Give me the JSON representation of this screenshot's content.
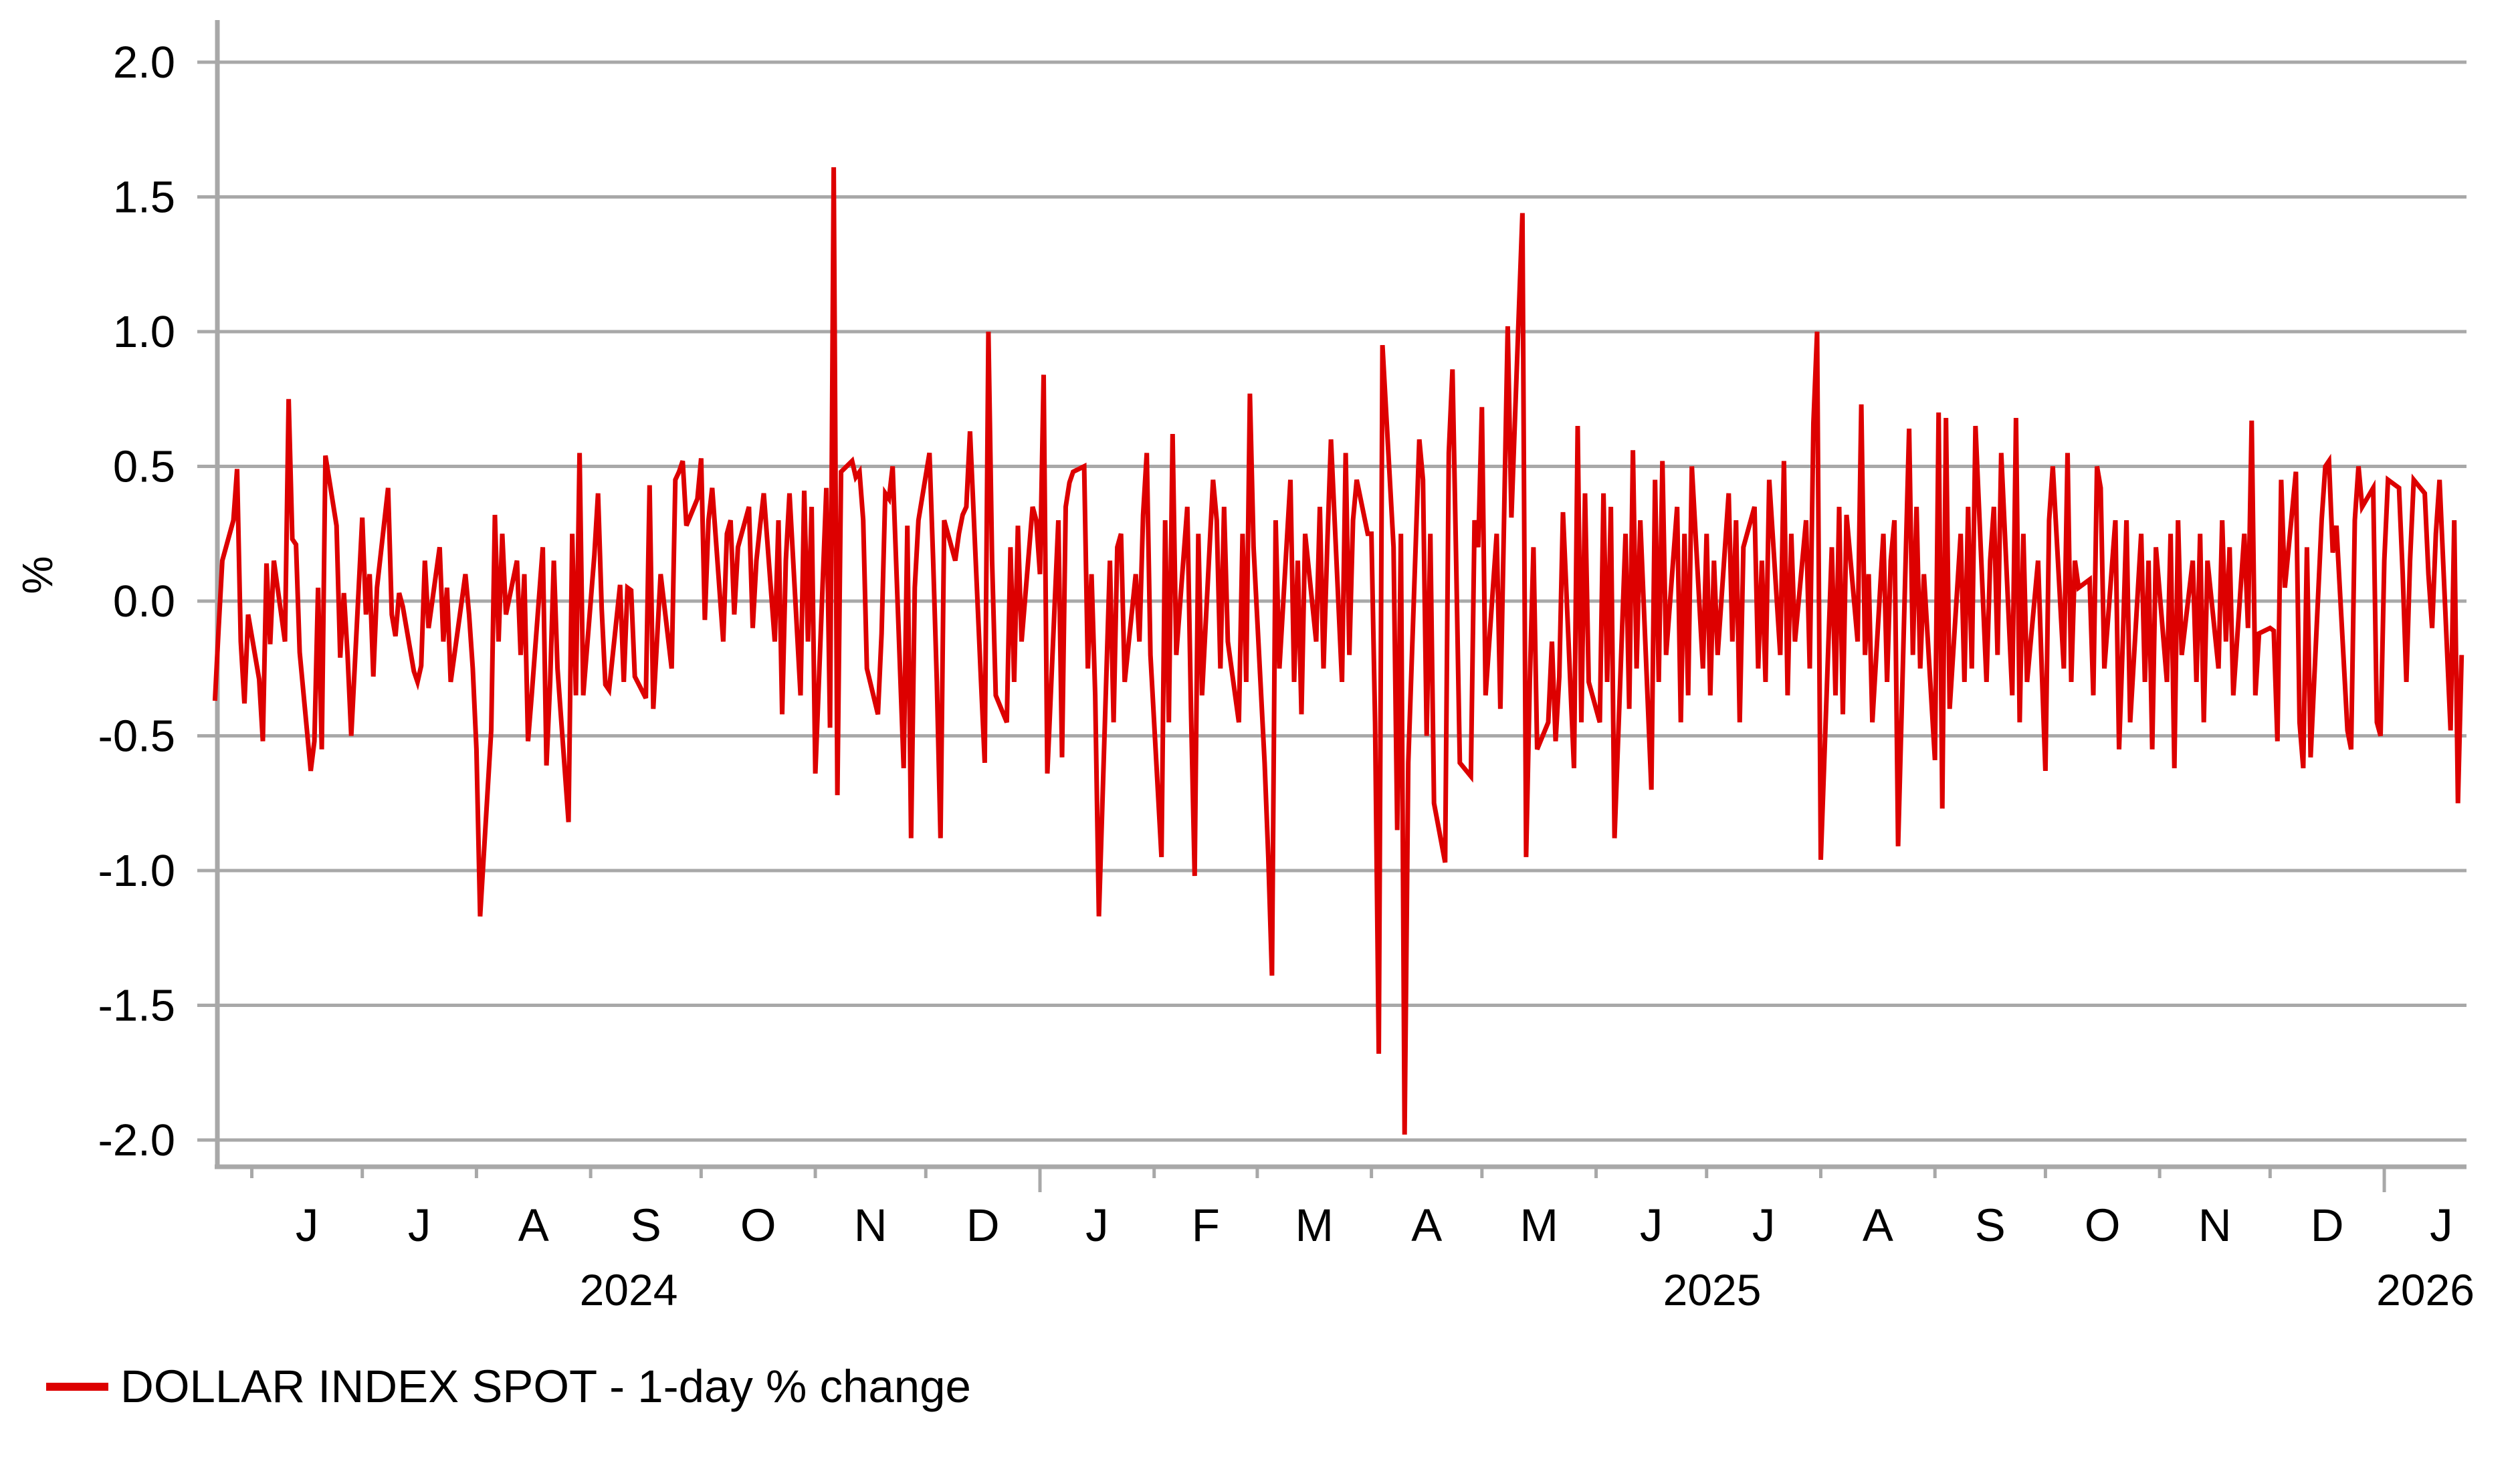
{
  "chart": {
    "ylabel": "%",
    "y_axis_tick_labels": [
      "2.0",
      "1.5",
      "1.0",
      "0.5",
      "0.0",
      "-0.5",
      "-1.0",
      "-1.5",
      "-2.0"
    ],
    "x_axis": {
      "month_labels": [
        "J",
        "J",
        "A",
        "S",
        "O",
        "N",
        "D",
        "J",
        "F",
        "M",
        "A",
        "M",
        "J",
        "J",
        "A",
        "S",
        "O",
        "N",
        "D",
        "J"
      ],
      "year_labels": [
        "2024",
        "2025",
        "2026"
      ]
    },
    "legend": {
      "label": "DOLLAR INDEX SPOT - 1-day % change"
    },
    "colors": {
      "line": "#dd0000",
      "axis": "#a8a8a8",
      "text": "#000000"
    }
  },
  "chart_data": {
    "type": "line",
    "title": "",
    "xlabel": "",
    "ylabel": "%",
    "ylim": [
      -2.0,
      2.0
    ],
    "y_tick_step": 0.5,
    "grid": "horizontal",
    "legend_position": "bottom-left",
    "x_start": "2024-05-22",
    "x_end": "2026-01-22",
    "frequency": "weekdays",
    "x_month_boundaries_first": "2024-06-01",
    "x_month_boundaries_last": "2026-01-01",
    "series": [
      {
        "name": "DOLLAR INDEX SPOT - 1-day % change",
        "color": "#dd0000",
        "values": [
          -0.37,
          -0.1,
          0.15,
          0.3,
          0.49,
          -0.15,
          -0.38,
          -0.05,
          -0.29,
          -0.52,
          0.14,
          -0.16,
          0.15,
          -0.15,
          0.75,
          0.23,
          0.21,
          -0.19,
          -0.63,
          -0.52,
          0.05,
          -0.55,
          0.54,
          0.28,
          -0.21,
          0.03,
          -0.2,
          -0.5,
          0.31,
          -0.05,
          0.1,
          -0.28,
          0.05,
          0.42,
          -0.05,
          -0.13,
          0.03,
          -0.02,
          -0.26,
          -0.3,
          -0.24,
          0.15,
          -0.1,
          0.2,
          -0.15,
          0.05,
          -0.3,
          -0.2,
          0.1,
          -0.05,
          -0.25,
          -0.55,
          -1.17,
          -0.48,
          0.32,
          -0.15,
          0.25,
          -0.05,
          0.15,
          -0.2,
          0.1,
          -0.52,
          -0.35,
          0.2,
          -0.61,
          -0.3,
          0.15,
          -0.25,
          -0.82,
          0.25,
          -0.35,
          0.55,
          -0.35,
          0.17,
          0.4,
          -0.03,
          -0.31,
          -0.33,
          0.06,
          -0.3,
          0.05,
          0.04,
          -0.28,
          -0.36,
          0.43,
          -0.4,
          -0.15,
          0.1,
          -0.25,
          0.45,
          0.48,
          0.52,
          0.28,
          0.38,
          0.53,
          -0.07,
          0.3,
          0.42,
          -0.15,
          0.25,
          0.3,
          -0.05,
          0.2,
          0.35,
          -0.1,
          0.15,
          0.28,
          0.4,
          -0.15,
          0.3,
          -0.42,
          0.15,
          0.4,
          -0.35,
          0.41,
          -0.15,
          0.35,
          -0.64,
          0.42,
          -0.47,
          1.61,
          -0.72,
          0.48,
          0.52,
          0.46,
          0.48,
          0.3,
          -0.25,
          -0.42,
          -0.12,
          0.4,
          0.38,
          0.5,
          -0.62,
          0.28,
          -0.88,
          0.05,
          0.3,
          0.55,
          0.15,
          -0.3,
          -0.88,
          0.3,
          0.15,
          0.25,
          0.32,
          0.35,
          0.63,
          -0.3,
          -0.6,
          1.0,
          0.15,
          -0.35,
          -0.45,
          0.2,
          -0.3,
          0.28,
          -0.15,
          0.35,
          0.3,
          0.1,
          0.84,
          -0.64,
          0.3,
          -0.58,
          0.35,
          0.44,
          0.48,
          0.5,
          -0.25,
          0.1,
          -0.35,
          -1.17,
          0.15,
          -0.45,
          0.2,
          0.25,
          -0.3,
          0.1,
          -0.15,
          0.32,
          0.55,
          -0.2,
          -0.95,
          0.3,
          -0.45,
          0.62,
          -0.2,
          0.35,
          -0.4,
          -1.02,
          0.25,
          -0.35,
          0.45,
          0.3,
          -0.25,
          0.35,
          -0.15,
          -0.45,
          0.25,
          -0.3,
          0.77,
          0.2,
          -0.6,
          -0.95,
          -1.39,
          0.3,
          -0.25,
          0.45,
          -0.3,
          0.15,
          -0.42,
          0.25,
          -0.15,
          0.35,
          -0.25,
          0.2,
          0.6,
          -0.3,
          0.55,
          -0.2,
          0.3,
          0.45,
          0.25,
          0.25,
          -0.45,
          -1.68,
          0.95,
          0.2,
          -0.85,
          0.25,
          -1.98,
          -0.6,
          0.6,
          0.45,
          -0.5,
          0.25,
          -0.75,
          -0.97,
          0.55,
          0.86,
          0.15,
          -0.6,
          -0.65,
          0.3,
          0.2,
          0.72,
          -0.35,
          0.25,
          -0.4,
          0.3,
          1.02,
          0.31,
          1.44,
          -0.95,
          -0.3,
          0.2,
          -0.55,
          -0.45,
          -0.15,
          -0.52,
          -0.28,
          0.33,
          -0.62,
          0.65,
          -0.45,
          0.4,
          -0.3,
          -0.45,
          0.4,
          -0.3,
          0.35,
          -0.88,
          0.25,
          -0.4,
          0.56,
          -0.25,
          0.3,
          -0.7,
          0.45,
          -0.3,
          0.52,
          -0.2,
          0.35,
          -0.45,
          0.25,
          -0.35,
          0.5,
          -0.25,
          0.25,
          -0.35,
          0.15,
          -0.2,
          0.4,
          -0.15,
          0.3,
          -0.45,
          0.2,
          0.35,
          -0.25,
          0.15,
          -0.3,
          0.45,
          -0.2,
          0.52,
          -0.35,
          0.25,
          -0.15,
          0.3,
          -0.25,
          0.66,
          1.0,
          -0.96,
          0.2,
          -0.35,
          0.35,
          -0.42,
          0.32,
          -0.15,
          0.73,
          -0.2,
          0.1,
          -0.45,
          0.25,
          -0.3,
          0.15,
          0.3,
          -0.91,
          0.64,
          -0.2,
          0.35,
          -0.25,
          0.1,
          -0.59,
          0.7,
          -0.77,
          0.68,
          -0.4,
          0.25,
          -0.3,
          0.35,
          -0.25,
          0.65,
          -0.3,
          0.15,
          0.35,
          -0.2,
          0.55,
          -0.35,
          0.68,
          -0.45,
          0.25,
          -0.3,
          0.15,
          -0.25,
          -0.63,
          0.3,
          0.5,
          -0.25,
          0.55,
          -0.3,
          0.15,
          0.05,
          0.08,
          -0.35,
          0.5,
          0.42,
          -0.25,
          0.3,
          -0.55,
          -0.15,
          0.3,
          -0.45,
          0.25,
          -0.3,
          0.15,
          -0.55,
          0.2,
          -0.3,
          0.25,
          -0.62,
          0.3,
          -0.2,
          0.15,
          -0.3,
          0.25,
          -0.45,
          0.15,
          -0.25,
          0.3,
          -0.15,
          0.2,
          -0.35,
          0.25,
          -0.1,
          0.67,
          -0.35,
          -0.12,
          -0.1,
          -0.11,
          -0.52,
          0.45,
          0.05,
          0.48,
          -0.45,
          -0.62,
          0.2,
          -0.58,
          0.3,
          0.5,
          0.52,
          0.18,
          0.28,
          -0.48,
          -0.55,
          0.3,
          0.5,
          0.35,
          0.42,
          -0.45,
          -0.5,
          0.15,
          0.45,
          0.42,
          0.1,
          -0.3,
          0.15,
          0.45,
          0.4,
          0.1,
          -0.1,
          0.25,
          0.45,
          -0.48,
          0.3,
          -0.75,
          -0.2
        ]
      }
    ]
  }
}
